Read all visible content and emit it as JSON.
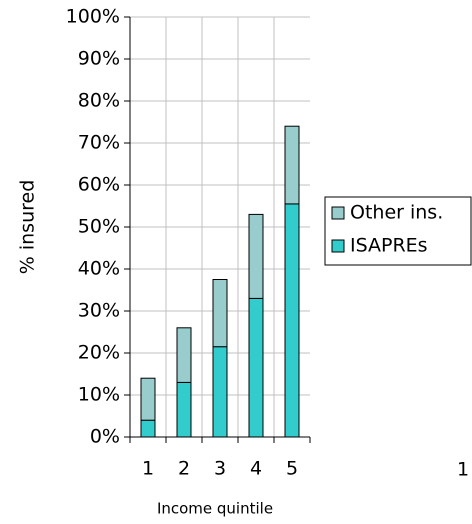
{
  "chart_data": {
    "type": "stacked-bar",
    "categories": [
      "1",
      "2",
      "3",
      "4",
      "5"
    ],
    "series": [
      {
        "name": "ISAPREs",
        "color": "#33cccc",
        "values": [
          4,
          13,
          21.5,
          33,
          55.5
        ]
      },
      {
        "name": "Other ins.",
        "color": "#99cccc",
        "values": [
          10,
          13,
          16,
          20,
          18.5
        ]
      }
    ],
    "ylim": [
      0,
      100
    ],
    "yticks": [
      {
        "value": 0,
        "label": "0%"
      },
      {
        "value": 10,
        "label": "10%"
      },
      {
        "value": 20,
        "label": "20%"
      },
      {
        "value": 30,
        "label": "30%"
      },
      {
        "value": 40,
        "label": "40%"
      },
      {
        "value": 50,
        "label": "50%"
      },
      {
        "value": 60,
        "label": "60%"
      },
      {
        "value": 70,
        "label": "70%"
      },
      {
        "value": 80,
        "label": "80%"
      },
      {
        "value": 90,
        "label": "90%"
      },
      {
        "value": 100,
        "label": "100%"
      }
    ],
    "y_label": "% insured",
    "x_label": "Income quintile",
    "grid": true,
    "legend": "right",
    "stray_text": "1"
  }
}
